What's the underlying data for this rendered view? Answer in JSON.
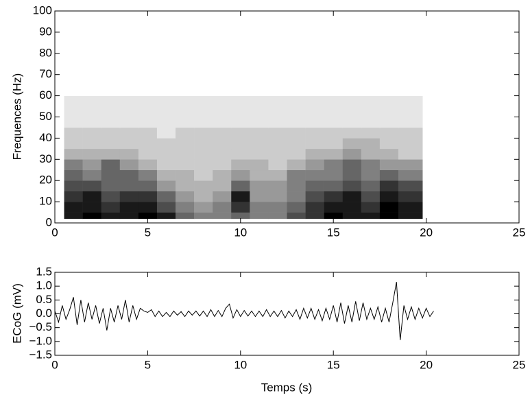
{
  "chart_data": [
    {
      "type": "heatmap",
      "ylabel": "Frequences (Hz)",
      "x_edges": [
        0.5,
        1.5,
        2.5,
        3.5,
        4.5,
        5.5,
        6.5,
        7.5,
        8.5,
        9.5,
        10.5,
        11.5,
        12.5,
        13.5,
        14.5,
        15.5,
        16.5,
        17.5,
        18.5,
        19.8
      ],
      "y_edges": [
        2,
        5,
        10,
        15,
        20,
        25,
        30,
        35,
        40,
        45,
        50,
        60,
        100
      ],
      "z": [
        [
          9,
          10,
          9,
          9,
          10,
          9,
          6,
          5,
          5,
          6,
          5,
          5,
          7,
          8,
          10,
          9,
          9,
          10,
          9
        ],
        [
          9,
          9,
          8,
          9,
          9,
          7,
          5,
          4,
          5,
          8,
          5,
          5,
          6,
          8,
          9,
          9,
          8,
          10,
          9
        ],
        [
          8,
          9,
          7,
          8,
          8,
          6,
          4,
          3,
          4,
          9,
          4,
          4,
          5,
          7,
          8,
          9,
          7,
          9,
          8
        ],
        [
          7,
          7,
          6,
          6,
          6,
          4,
          3,
          3,
          3,
          6,
          4,
          4,
          5,
          6,
          6,
          7,
          6,
          8,
          7
        ],
        [
          6,
          5,
          6,
          6,
          5,
          3,
          3,
          2,
          3,
          4,
          3,
          3,
          5,
          5,
          5,
          6,
          5,
          6,
          5
        ],
        [
          5,
          4,
          6,
          4,
          3,
          2,
          2,
          2,
          2,
          3,
          3,
          2,
          3,
          4,
          5,
          6,
          5,
          4,
          4
        ],
        [
          3,
          3,
          3,
          3,
          2,
          2,
          2,
          2,
          2,
          2,
          2,
          2,
          2,
          3,
          3,
          4,
          3,
          3,
          2
        ],
        [
          2,
          2,
          2,
          2,
          2,
          2,
          2,
          2,
          2,
          2,
          2,
          2,
          2,
          2,
          2,
          3,
          3,
          2,
          2
        ],
        [
          2,
          2,
          2,
          2,
          2,
          1,
          2,
          2,
          2,
          2,
          2,
          2,
          2,
          2,
          2,
          2,
          2,
          2,
          2
        ],
        [
          1,
          1,
          1,
          1,
          1,
          1,
          1,
          1,
          1,
          1,
          1,
          1,
          1,
          1,
          1,
          1,
          1,
          1,
          1
        ],
        [
          1,
          1,
          1,
          1,
          1,
          1,
          1,
          1,
          1,
          1,
          1,
          1,
          1,
          1,
          1,
          1,
          1,
          1,
          1
        ],
        [
          0,
          0,
          0,
          0,
          0,
          0,
          0,
          0,
          0,
          0,
          0,
          0,
          0,
          0,
          0,
          0,
          0,
          0,
          0
        ]
      ],
      "xlim": [
        0,
        25
      ],
      "xticks": [
        0,
        5,
        10,
        15,
        20,
        25
      ],
      "ylim": [
        0,
        100
      ],
      "yticks": [
        0,
        10,
        20,
        30,
        40,
        50,
        60,
        70,
        80,
        90,
        100
      ]
    },
    {
      "type": "line",
      "xlabel": "Temps (s)",
      "ylabel": "ECoG (mV)",
      "color": "#000000",
      "x": [
        0,
        0.2,
        0.4,
        0.6,
        0.8,
        1,
        1.2,
        1.4,
        1.6,
        1.8,
        2,
        2.2,
        2.4,
        2.6,
        2.8,
        3,
        3.2,
        3.4,
        3.6,
        3.8,
        4,
        4.2,
        4.4,
        4.6,
        4.8,
        5,
        5.2,
        5.4,
        5.6,
        5.8,
        6,
        6.2,
        6.4,
        6.6,
        6.8,
        7,
        7.2,
        7.4,
        7.6,
        7.8,
        8,
        8.2,
        8.4,
        8.6,
        8.8,
        9,
        9.2,
        9.4,
        9.6,
        9.8,
        10,
        10.2,
        10.4,
        10.6,
        10.8,
        11,
        11.2,
        11.4,
        11.6,
        11.8,
        12,
        12.2,
        12.4,
        12.6,
        12.8,
        13,
        13.2,
        13.4,
        13.6,
        13.8,
        14,
        14.2,
        14.4,
        14.6,
        14.8,
        15,
        15.2,
        15.4,
        15.6,
        15.8,
        16,
        16.2,
        16.4,
        16.6,
        16.8,
        17,
        17.2,
        17.4,
        17.6,
        17.8,
        18,
        18.2,
        18.4,
        18.6,
        18.8,
        19,
        19.2,
        19.4,
        19.6,
        19.8,
        20,
        20.2,
        20.4
      ],
      "values": [
        0.1,
        -0.3,
        0.3,
        -0.2,
        0.15,
        0.6,
        -0.4,
        0.5,
        -0.3,
        0.4,
        -0.2,
        0.3,
        -0.35,
        0.2,
        -0.6,
        0.2,
        -0.3,
        0.3,
        -0.2,
        0.5,
        -0.3,
        0.3,
        -0.2,
        0.2,
        0.1,
        0.05,
        0.15,
        -0.1,
        0.1,
        -0.1,
        0.05,
        -0.1,
        0.1,
        -0.05,
        0.08,
        -0.1,
        0.1,
        -0.05,
        0.1,
        -0.08,
        0.1,
        -0.1,
        0.15,
        -0.1,
        0.12,
        -0.1,
        0.2,
        0.35,
        -0.15,
        0.15,
        -0.1,
        0.12,
        -0.08,
        0.1,
        -0.1,
        0.1,
        -0.1,
        0.15,
        -0.1,
        0.1,
        -0.1,
        0.12,
        -0.15,
        0.1,
        -0.1,
        0.15,
        -0.2,
        0.2,
        -0.15,
        0.2,
        -0.2,
        0.15,
        -0.25,
        0.2,
        -0.2,
        0.3,
        -0.3,
        0.4,
        -0.35,
        0.3,
        -0.3,
        0.45,
        -0.25,
        0.4,
        -0.2,
        0.2,
        -0.2,
        0.25,
        -0.3,
        0.2,
        -0.3,
        0.4,
        1.15,
        -0.95,
        0.3,
        -0.2,
        0.25,
        -0.2,
        0.2,
        -0.15,
        0.2,
        -0.1,
        0.1
      ],
      "xlim": [
        0,
        25
      ],
      "xticks": [
        0,
        5,
        10,
        15,
        20,
        25
      ],
      "ylim": [
        -1.5,
        1.5
      ],
      "yticks": [
        {
          "value": -1.5,
          "label": "−1.5"
        },
        {
          "value": -1,
          "label": "−1.0"
        },
        {
          "value": -0.5,
          "label": "−0.5"
        },
        {
          "value": 0,
          "label": "0.0"
        },
        0.5,
        {
          "value": 1,
          "label": "1.0"
        },
        1.5
      ]
    }
  ]
}
